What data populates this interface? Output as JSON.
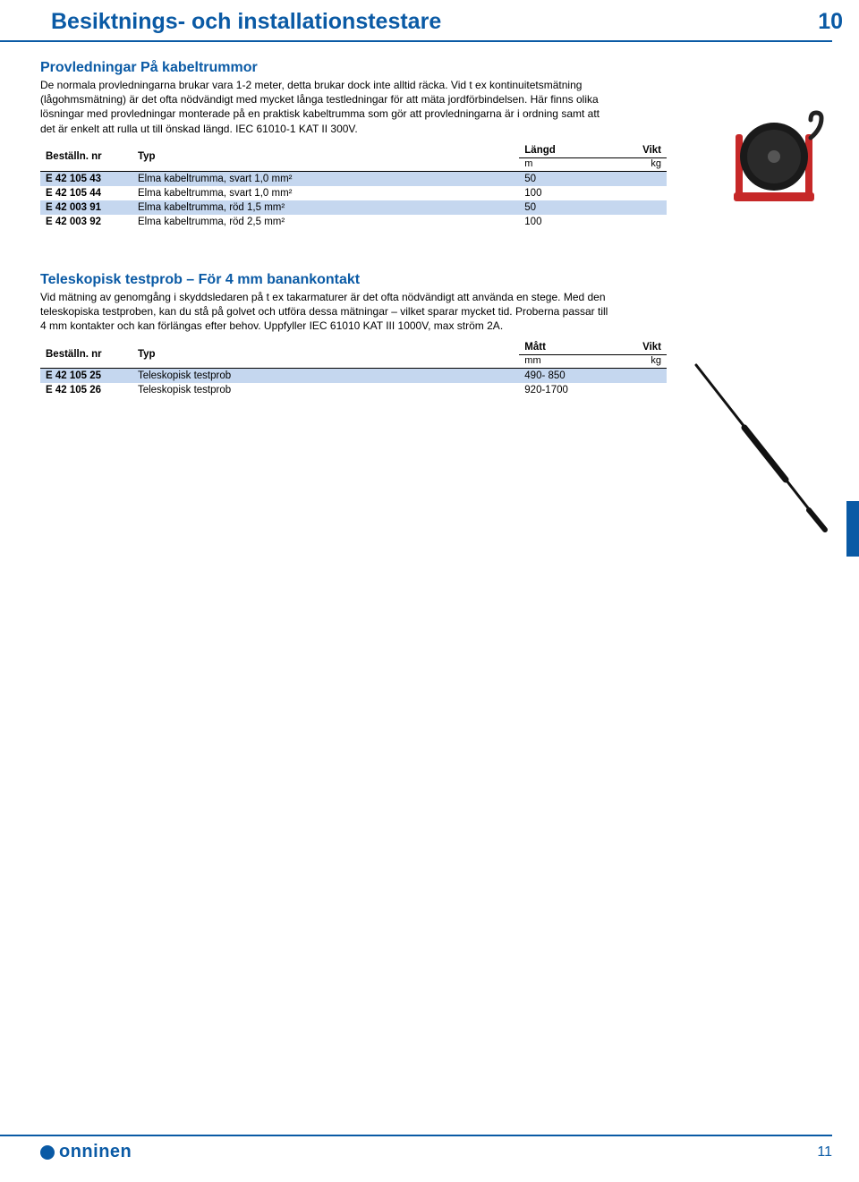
{
  "header": {
    "title": "Besiktnings- och installationstestare",
    "chapter_num": "10"
  },
  "section1": {
    "title": "Provledningar På kabeltrummor",
    "body": "De normala provledningarna brukar vara 1-2 meter, detta brukar dock inte alltid räcka. Vid t ex kontinuitetsmätning (lågohmsmätning) är det ofta nödvändigt med mycket långa testledningar för att mäta jordförbindelsen. Här finns olika lösningar med provledningar monterade på en praktisk kabeltrumma som gör att provledningarna är i ordning samt att det är enkelt att rulla ut till önskad längd. IEC 61010-1 KAT II 300V.",
    "columns": {
      "order": "Beställn. nr",
      "type": "Typ",
      "len": "Längd",
      "len_unit": "m",
      "wt": "Vikt",
      "wt_unit": "kg"
    },
    "rows": [
      {
        "order": "E 42 105 43",
        "type": "Elma kabeltrumma, svart 1,0 mm²",
        "len": "50",
        "wt": ""
      },
      {
        "order": "E 42 105 44",
        "type": "Elma kabeltrumma, svart 1,0 mm²",
        "len": "100",
        "wt": ""
      },
      {
        "order": "E 42 003 91",
        "type": "Elma kabeltrumma, röd 1,5 mm²",
        "len": "50",
        "wt": ""
      },
      {
        "order": "E 42 003 92",
        "type": "Elma kabeltrumma, röd 2,5 mm²",
        "len": "100",
        "wt": ""
      }
    ]
  },
  "section2": {
    "title": "Teleskopisk testprob – För 4 mm banankontakt",
    "body": "Vid mätning av genomgång i skyddsledaren på t ex takarmaturer är det ofta nödvändigt att använda en stege. Med den teleskopiska testproben, kan du stå på golvet och utföra dessa mätningar – vilket sparar mycket tid. Proberna passar till 4 mm kontakter och kan förlängas efter behov. Uppfyller IEC 61010 KAT III 1000V, max ström 2A.",
    "columns": {
      "order": "Beställn. nr",
      "type": "Typ",
      "len": "Mått",
      "len_unit": "mm",
      "wt": "Vikt",
      "wt_unit": "kg"
    },
    "rows": [
      {
        "order": "E 42 105 25",
        "type": "Teleskopisk testprob",
        "len": "490- 850",
        "wt": ""
      },
      {
        "order": "E 42 105 26",
        "type": "Teleskopisk testprob",
        "len": "920-1700",
        "wt": ""
      }
    ]
  },
  "footer": {
    "brand": "onninen",
    "page_num": "11"
  },
  "images": {
    "reel": {
      "frame_color": "#c62828",
      "reel_color": "#1a1a1a",
      "handle_color": "#222"
    },
    "probe": {
      "color": "#111"
    }
  }
}
